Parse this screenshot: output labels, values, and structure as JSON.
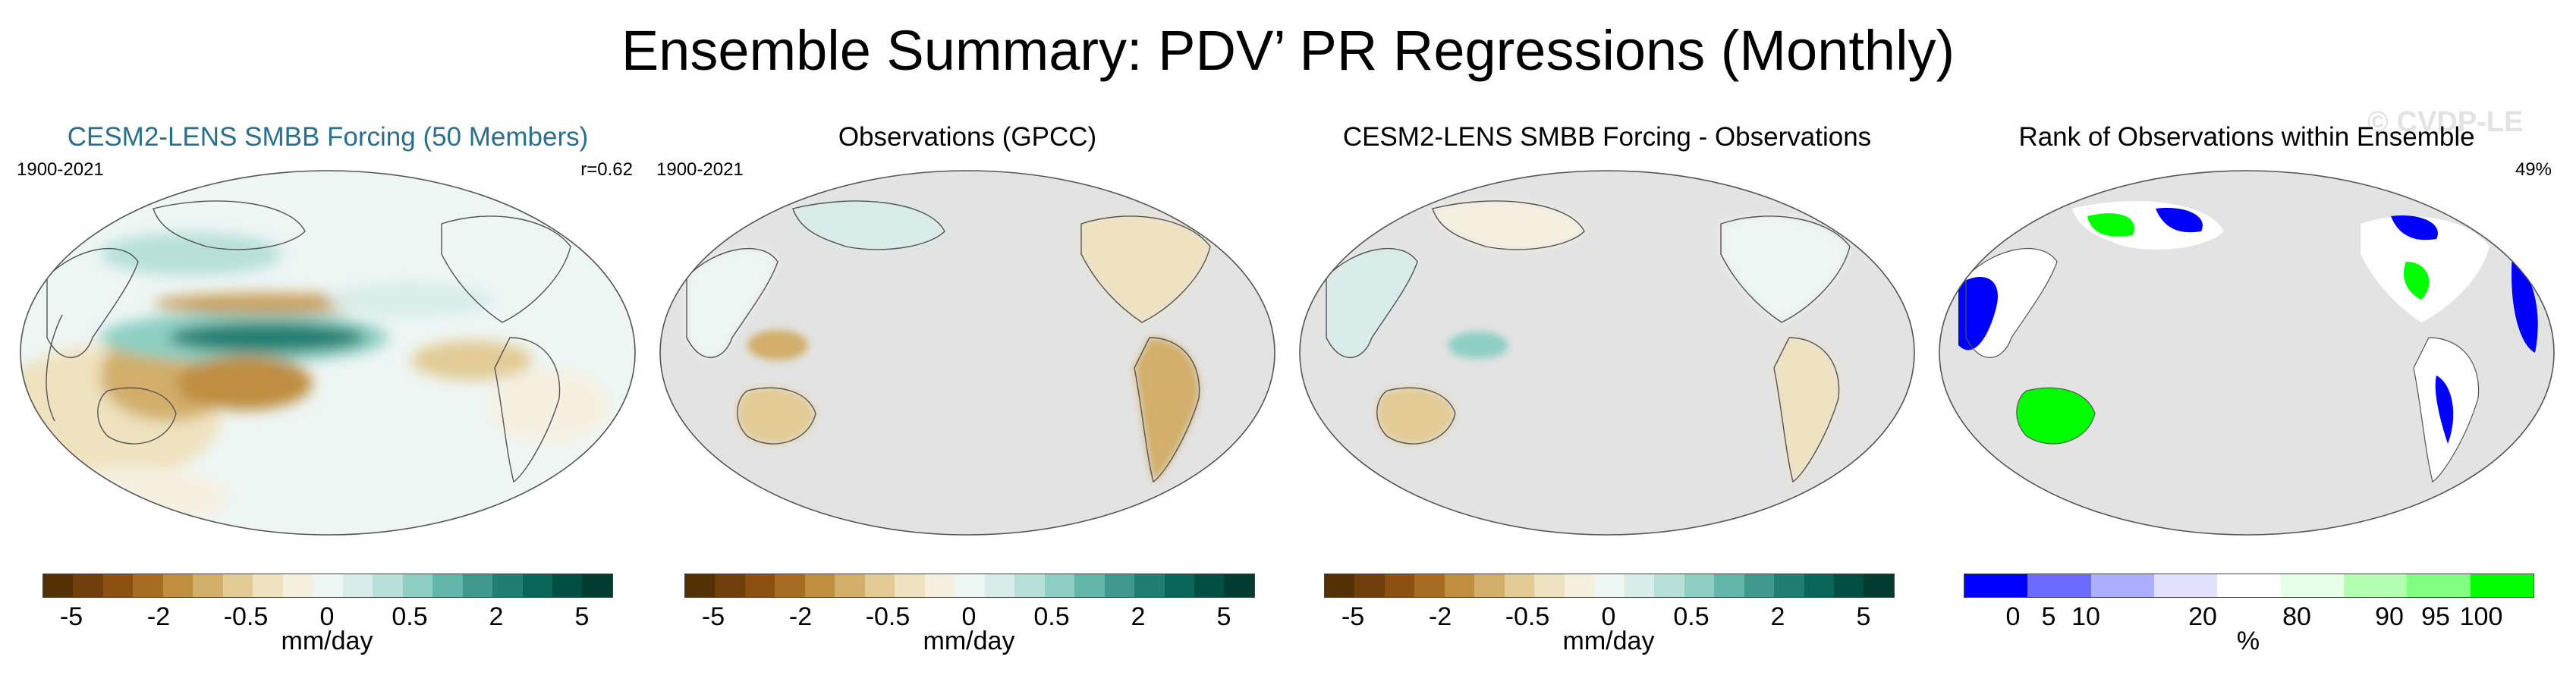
{
  "figure": {
    "title": "Ensemble Summary: PDV’ PR Regressions (Monthly)",
    "watermark": "© CVDP-LE"
  },
  "panels": [
    {
      "title": "CESM2-LENS SMBB Forcing (50 Members)",
      "period": "1900-2021",
      "stat": "r=0.62",
      "title_color": "#2a6f8f"
    },
    {
      "title": "Observations (GPCC)",
      "period": "1900-2021",
      "stat": ""
    },
    {
      "title": "CESM2-LENS SMBB Forcing - Observations",
      "period": "",
      "stat": ""
    },
    {
      "title": "Rank of Observations within Ensemble",
      "period": "",
      "stat": "49%"
    }
  ],
  "colorbars": {
    "regression": {
      "colors": [
        "#543005",
        "#6f3f0b",
        "#8c5111",
        "#a66d22",
        "#bf8e3f",
        "#d2ae6a",
        "#e2cb94",
        "#efe2bf",
        "#f6f0e1",
        "#eef6f4",
        "#d8ede9",
        "#b7e0d9",
        "#8ecfc3",
        "#63b7aa",
        "#3f9a8d",
        "#217f72",
        "#0b665a",
        "#014f43",
        "#003c30"
      ],
      "ticks": [
        "-5",
        "-2",
        "-0.5",
        "0",
        "0.5",
        "2",
        "5"
      ],
      "unit": "mm/day"
    },
    "rank": {
      "colors": [
        "#0000ff",
        "#6b6bff",
        "#aeaeff",
        "#e2e2ff",
        "#ffffff",
        "#e6ffe6",
        "#b2ffb2",
        "#80ff80",
        "#00ff00"
      ],
      "ticks": [
        "0",
        "5",
        "10",
        "20",
        "80",
        "90",
        "95",
        "100"
      ],
      "unit": "%"
    }
  },
  "colors": {
    "ocean_no_data": "#e3e3e3",
    "coast": "#555555",
    "pos_strong": "#0b665a",
    "pos_mid": "#63b7aa",
    "pos_light": "#d8ede9",
    "neg_strong": "#8c5111",
    "neg_mid": "#c29a55",
    "neg_light": "#efe2bf",
    "rank_low": "#0000ff",
    "rank_high": "#00ff00"
  }
}
